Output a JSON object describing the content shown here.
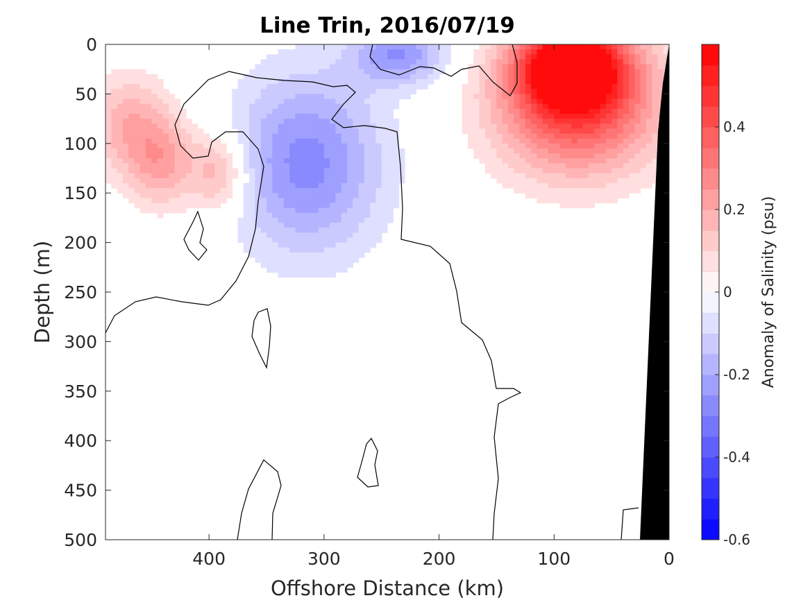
{
  "chart_data": {
    "type": "heatmap",
    "title": "Line Trin, 2016/07/19",
    "xlabel": "Offshore Distance (km)",
    "ylabel": "Depth (m)",
    "xlim": [
      490,
      0
    ],
    "ylim": [
      0,
      500
    ],
    "x_axis_reversed": true,
    "y_axis_reversed": true,
    "x_ticks": [
      400,
      300,
      200,
      100,
      0
    ],
    "y_ticks": [
      0,
      50,
      100,
      150,
      200,
      250,
      300,
      350,
      400,
      450,
      500
    ],
    "colorbar": {
      "label": "Anomaly of Salinity (psu)",
      "range": [
        -0.6,
        0.6
      ],
      "step": 0.05,
      "ticks": [
        0.4,
        0.2,
        0,
        -0.2,
        -0.4,
        -0.6
      ],
      "negative_color": "#0000ff",
      "positive_color": "#ff0000",
      "neutral_color": "#ffffff"
    },
    "anomaly_features": [
      {
        "name": "nearshore surface high",
        "x": 85,
        "depth": 20,
        "value": 0.55
      },
      {
        "name": "nearshore subsurface high",
        "x": 80,
        "depth": 60,
        "value": 0.45
      },
      {
        "name": "offshore subsurface low",
        "x": 315,
        "depth": 120,
        "value": -0.27
      },
      {
        "name": "surface low",
        "x": 235,
        "depth": 10,
        "value": -0.25
      },
      {
        "name": "offshore upper high",
        "x": 470,
        "depth": 80,
        "value": 0.18
      },
      {
        "name": "offshore high west",
        "x": 440,
        "depth": 120,
        "value": 0.2
      },
      {
        "name": "offshore high east",
        "x": 390,
        "depth": 130,
        "value": 0.2
      }
    ],
    "zero_contour_drawn": true,
    "bathymetry_color": "#000000",
    "grid": false,
    "legend": "colorbar-right"
  }
}
